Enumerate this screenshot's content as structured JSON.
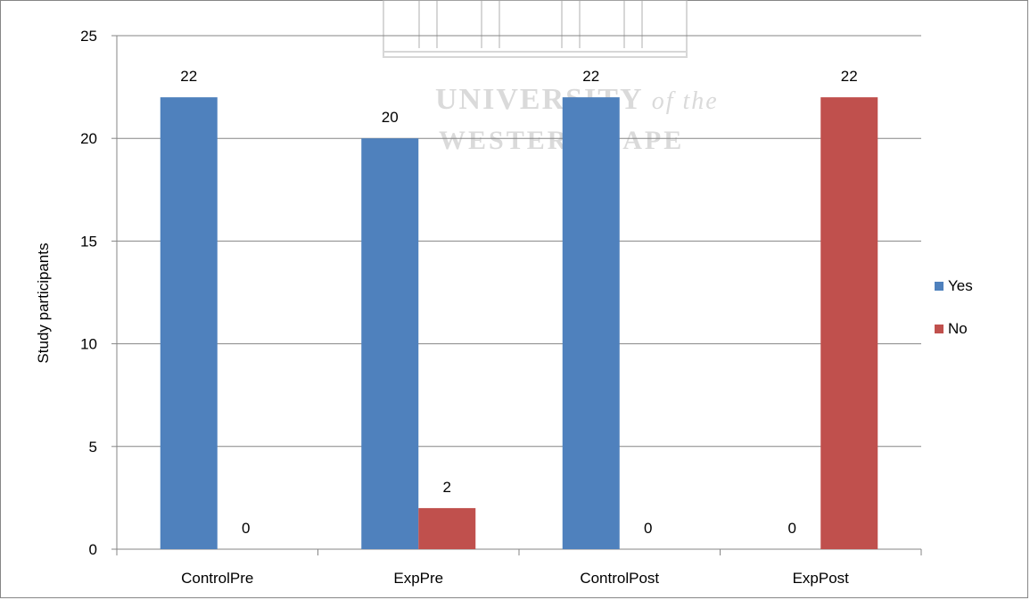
{
  "chart_data": {
    "type": "bar",
    "categories": [
      "ControlPre",
      "ExpPre",
      "ControlPost",
      "ExpPost"
    ],
    "series": [
      {
        "name": "Yes",
        "values": [
          22,
          20,
          22,
          0
        ],
        "color": "#4F81BD"
      },
      {
        "name": "No",
        "values": [
          0,
          2,
          0,
          22
        ],
        "color": "#C0504D"
      }
    ],
    "title": "",
    "xlabel": "",
    "ylabel": "Study participants",
    "ylim": [
      0,
      25
    ],
    "yticks": [
      0,
      5,
      10,
      15,
      20,
      25
    ],
    "grid": true,
    "legend_position": "right",
    "watermark": {
      "line1": "UNIVERSITY",
      "line1_suffix": "of the",
      "line2": "WESTERN CAPE",
      "color": "#C8C8C8"
    }
  }
}
